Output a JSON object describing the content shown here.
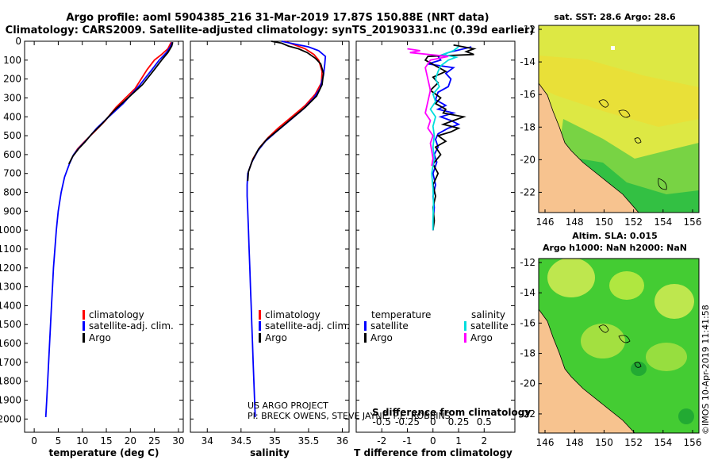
{
  "header": {
    "line1": "Argo profile: aoml 5904385_216 31-Mar-2019 17.87S 150.88E (NRT data)",
    "line2": "Climatology: CARS2009. Satellite-adjusted climatology: synTS_20190331.nc (0.39d earlier)"
  },
  "depth_ticks": [
    0,
    100,
    200,
    300,
    400,
    500,
    600,
    700,
    800,
    900,
    1000,
    1100,
    1200,
    1300,
    1400,
    1500,
    1600,
    1700,
    1800,
    1900,
    2000
  ],
  "colors": {
    "climatology": "#ff0000",
    "satellite": "#0000ff",
    "argo": "#000000",
    "argo_s": "#ff00ff",
    "satellite_s": "#00dddd",
    "land": "#f7c38f",
    "sst_bg": "#ddee33",
    "sla_bg": "#33cc33"
  },
  "chart_data": [
    {
      "type": "line",
      "id": "temperature",
      "xlabel": "temperature (deg C)",
      "xlim": [
        -2,
        31
      ],
      "ylim": [
        2070,
        0
      ],
      "xticks": [
        "0",
        "5",
        "10",
        "15",
        "20",
        "25",
        "30"
      ],
      "legend": [
        "climatology",
        "satellite-adj. clim.",
        "Argo"
      ],
      "series": [
        {
          "name": "climatology",
          "color": "#ff0000",
          "points": [
            [
              28.5,
              5
            ],
            [
              28.2,
              20
            ],
            [
              27.8,
              40
            ],
            [
              26.5,
              70
            ],
            [
              25,
              100
            ],
            [
              23.5,
              150
            ],
            [
              21,
              250
            ],
            [
              17,
              350
            ],
            [
              14.8,
              420
            ],
            [
              12.5,
              480
            ],
            [
              10.5,
              530
            ],
            [
              9,
              570
            ],
            [
              8,
              610
            ]
          ]
        },
        {
          "name": "satellite-adj. clim.",
          "color": "#0000ff",
          "points": [
            [
              28.7,
              5
            ],
            [
              28.3,
              30
            ],
            [
              27.5,
              60
            ],
            [
              26,
              100
            ],
            [
              24.5,
              150
            ],
            [
              22,
              230
            ],
            [
              18.5,
              330
            ],
            [
              15.5,
              400
            ],
            [
              13,
              460
            ],
            [
              11,
              520
            ],
            [
              9.3,
              565
            ],
            [
              8.2,
              600
            ],
            [
              7.3,
              650
            ],
            [
              6.3,
              720
            ],
            [
              5.6,
              800
            ],
            [
              5,
              900
            ],
            [
              4.6,
              1000
            ],
            [
              4.3,
              1100
            ],
            [
              4,
              1200
            ],
            [
              3.8,
              1300
            ],
            [
              3.6,
              1400
            ],
            [
              3.4,
              1500
            ],
            [
              3.2,
              1600
            ],
            [
              3,
              1700
            ],
            [
              2.8,
              1800
            ],
            [
              2.6,
              1900
            ],
            [
              2.4,
              1990
            ]
          ]
        },
        {
          "name": "Argo",
          "color": "#000000",
          "points": [
            [
              28.8,
              5
            ],
            [
              28.6,
              25
            ],
            [
              27.8,
              60
            ],
            [
              26.5,
              100
            ],
            [
              25,
              150
            ],
            [
              22.5,
              230
            ],
            [
              19.5,
              300
            ],
            [
              16.5,
              370
            ],
            [
              14,
              440
            ],
            [
              12,
              490
            ],
            [
              10.5,
              535
            ],
            [
              9.2,
              570
            ],
            [
              8,
              610
            ],
            [
              7.2,
              650
            ]
          ]
        }
      ]
    },
    {
      "type": "line",
      "id": "salinity",
      "xlabel": "salinity",
      "xlim": [
        33.75,
        36.1
      ],
      "ylim": [
        2070,
        0
      ],
      "xticks": [
        "34",
        "34.5",
        "35",
        "35.5",
        "36"
      ],
      "legend": [
        "climatology",
        "satellite-adj. clim.",
        "Argo"
      ],
      "series": [
        {
          "name": "climatology",
          "color": "#ff0000",
          "points": [
            [
              35.15,
              0
            ],
            [
              35.3,
              20
            ],
            [
              35.45,
              40
            ],
            [
              35.58,
              70
            ],
            [
              35.65,
              100
            ],
            [
              35.7,
              160
            ],
            [
              35.69,
              220
            ],
            [
              35.6,
              280
            ],
            [
              35.45,
              340
            ],
            [
              35.25,
              400
            ],
            [
              35.05,
              460
            ],
            [
              34.9,
              510
            ],
            [
              34.78,
              560
            ],
            [
              34.68,
              620
            ],
            [
              34.62,
              680
            ]
          ]
        },
        {
          "name": "satellite-adj. clim.",
          "color": "#0000ff",
          "points": [
            [
              35.1,
              0
            ],
            [
              35.3,
              15
            ],
            [
              35.5,
              30
            ],
            [
              35.65,
              50
            ],
            [
              35.75,
              80
            ],
            [
              35.74,
              120
            ],
            [
              35.72,
              180
            ],
            [
              35.67,
              250
            ],
            [
              35.58,
              300
            ],
            [
              35.42,
              360
            ],
            [
              35.22,
              420
            ],
            [
              35.02,
              480
            ],
            [
              34.86,
              530
            ],
            [
              34.75,
              580
            ],
            [
              34.66,
              640
            ],
            [
              34.6,
              700
            ],
            [
              34.59,
              760
            ],
            [
              34.59,
              820
            ],
            [
              34.6,
              900
            ],
            [
              34.61,
              1000
            ],
            [
              34.62,
              1100
            ],
            [
              34.63,
              1200
            ],
            [
              34.64,
              1300
            ],
            [
              34.65,
              1400
            ],
            [
              34.66,
              1500
            ],
            [
              34.67,
              1600
            ],
            [
              34.68,
              1700
            ],
            [
              34.69,
              1800
            ],
            [
              34.7,
              1900
            ],
            [
              34.71,
              1990
            ]
          ]
        },
        {
          "name": "Argo",
          "color": "#000000",
          "points": [
            [
              34.95,
              0
            ],
            [
              35.1,
              10
            ],
            [
              35.2,
              25
            ],
            [
              35.35,
              40
            ],
            [
              35.48,
              60
            ],
            [
              35.6,
              90
            ],
            [
              35.68,
              120
            ],
            [
              35.72,
              170
            ],
            [
              35.7,
              230
            ],
            [
              35.62,
              290
            ],
            [
              35.45,
              350
            ],
            [
              35.25,
              410
            ],
            [
              35.05,
              470
            ],
            [
              34.88,
              520
            ],
            [
              34.76,
              570
            ],
            [
              34.67,
              630
            ],
            [
              34.61,
              690
            ],
            [
              34.6,
              740
            ]
          ]
        }
      ]
    },
    {
      "type": "line",
      "id": "difference",
      "xlabel": "T difference from climatology",
      "xlabel2": "S difference from climatology",
      "xlim": [
        -3,
        3.2
      ],
      "ylim": [
        2070,
        0
      ],
      "xticks": [
        "-2",
        "-1",
        "0",
        "1",
        "2"
      ],
      "xticks_s": [
        "-0.5",
        "-0.25",
        "0",
        "0.25",
        "0.5"
      ],
      "legend_t_title": "temperature",
      "legend_s_title": "salinity",
      "legend_t": [
        "satellite",
        "Argo"
      ],
      "legend_s": [
        "satellite",
        "Argo"
      ],
      "series": [
        {
          "name": "T satellite",
          "color": "#0000ff",
          "points": [
            [
              1.5,
              30
            ],
            [
              0.6,
              60
            ],
            [
              0.2,
              80
            ],
            [
              0.3,
              100
            ],
            [
              -0.2,
              120
            ],
            [
              0.8,
              140
            ],
            [
              0.5,
              170
            ],
            [
              0.7,
              200
            ],
            [
              0.6,
              240
            ],
            [
              0.2,
              270
            ],
            [
              0.1,
              310
            ],
            [
              0.5,
              340
            ],
            [
              0.2,
              360
            ],
            [
              0.8,
              380
            ],
            [
              0.3,
              400
            ],
            [
              0.7,
              420
            ],
            [
              1,
              440
            ],
            [
              0.6,
              460
            ],
            [
              0.2,
              490
            ],
            [
              0.1,
              520
            ],
            [
              0.2,
              560
            ],
            [
              0.05,
              600
            ],
            [
              0.15,
              640
            ],
            [
              0,
              700
            ],
            [
              0.1,
              760
            ],
            [
              0,
              820
            ],
            [
              0.05,
              880
            ],
            [
              0,
              950
            ],
            [
              0,
              1000
            ]
          ]
        },
        {
          "name": "T Argo",
          "color": "#000000",
          "points": [
            [
              0.8,
              20
            ],
            [
              1.6,
              40
            ],
            [
              1.3,
              55
            ],
            [
              1.6,
              70
            ],
            [
              -0.2,
              80
            ],
            [
              -0.3,
              100
            ],
            [
              0.1,
              130
            ],
            [
              0.5,
              160
            ],
            [
              0,
              190
            ],
            [
              0.2,
              220
            ],
            [
              -0.1,
              260
            ],
            [
              0.3,
              300
            ],
            [
              0.1,
              330
            ],
            [
              0.5,
              360
            ],
            [
              0.4,
              380
            ],
            [
              1.2,
              400
            ],
            [
              0.8,
              420
            ],
            [
              0.4,
              440
            ],
            [
              1,
              460
            ],
            [
              0.7,
              480
            ],
            [
              0.2,
              500
            ],
            [
              0.5,
              530
            ],
            [
              0.1,
              560
            ],
            [
              0.3,
              600
            ],
            [
              0,
              650
            ],
            [
              0.2,
              700
            ],
            [
              0,
              760
            ],
            [
              0.1,
              820
            ],
            [
              0,
              880
            ],
            [
              0.05,
              950
            ],
            [
              0,
              1000
            ]
          ]
        },
        {
          "name": "S satellite",
          "color": "#00dddd",
          "points": [
            [
              1,
              30
            ],
            [
              0.8,
              50
            ],
            [
              0.4,
              70
            ],
            [
              0.9,
              85
            ],
            [
              0.6,
              100
            ],
            [
              0.3,
              130
            ],
            [
              0.2,
              160
            ],
            [
              0.1,
              200
            ],
            [
              0.25,
              240
            ],
            [
              0,
              280
            ],
            [
              0.1,
              320
            ],
            [
              -0.1,
              360
            ],
            [
              0.1,
              400
            ],
            [
              0,
              450
            ],
            [
              0.05,
              500
            ],
            [
              0,
              560
            ],
            [
              0.05,
              620
            ],
            [
              -0.05,
              700
            ],
            [
              0,
              780
            ],
            [
              0.02,
              860
            ],
            [
              0,
              940
            ],
            [
              0,
              1000
            ]
          ]
        },
        {
          "name": "S Argo",
          "color": "#ff00ff",
          "points": [
            [
              -1,
              40
            ],
            [
              -0.5,
              50
            ],
            [
              -0.9,
              60
            ],
            [
              0.6,
              80
            ],
            [
              -0.1,
              100
            ],
            [
              -0.3,
              140
            ],
            [
              -0.2,
              200
            ],
            [
              -0.1,
              260
            ],
            [
              -0.2,
              320
            ],
            [
              -0.3,
              380
            ],
            [
              -0.1,
              420
            ],
            [
              -0.2,
              460
            ],
            [
              0,
              500
            ],
            [
              -0.1,
              540
            ],
            [
              -0.05,
              580
            ],
            [
              0,
              620
            ],
            [
              -0.05,
              660
            ]
          ]
        }
      ]
    },
    {
      "type": "heatmap",
      "id": "sst_map",
      "title": "sat. SST: 28.6 Argo: 28.6",
      "xticks": [
        "146",
        "148",
        "150",
        "152",
        "154",
        "156"
      ],
      "yticks": [
        "-12",
        "-14",
        "-16",
        "-18",
        "-20",
        "-22"
      ]
    },
    {
      "type": "heatmap",
      "id": "sla_map",
      "title1": "Altim. SLA: 0.015",
      "title2": "Argo h1000: NaN h2000: NaN",
      "xticks": [
        "146",
        "148",
        "150",
        "152",
        "154",
        "156"
      ],
      "yticks": [
        "-12",
        "-14",
        "-16",
        "-18",
        "-20",
        "-22"
      ]
    }
  ],
  "credits": {
    "project": "US ARGO PROJECT",
    "pi": "PI: BRECK OWENS, STEVE JAYNE, P.E. ROBBINS",
    "watermark": "©IMOS 10-Apr-2019 11:41:58"
  }
}
